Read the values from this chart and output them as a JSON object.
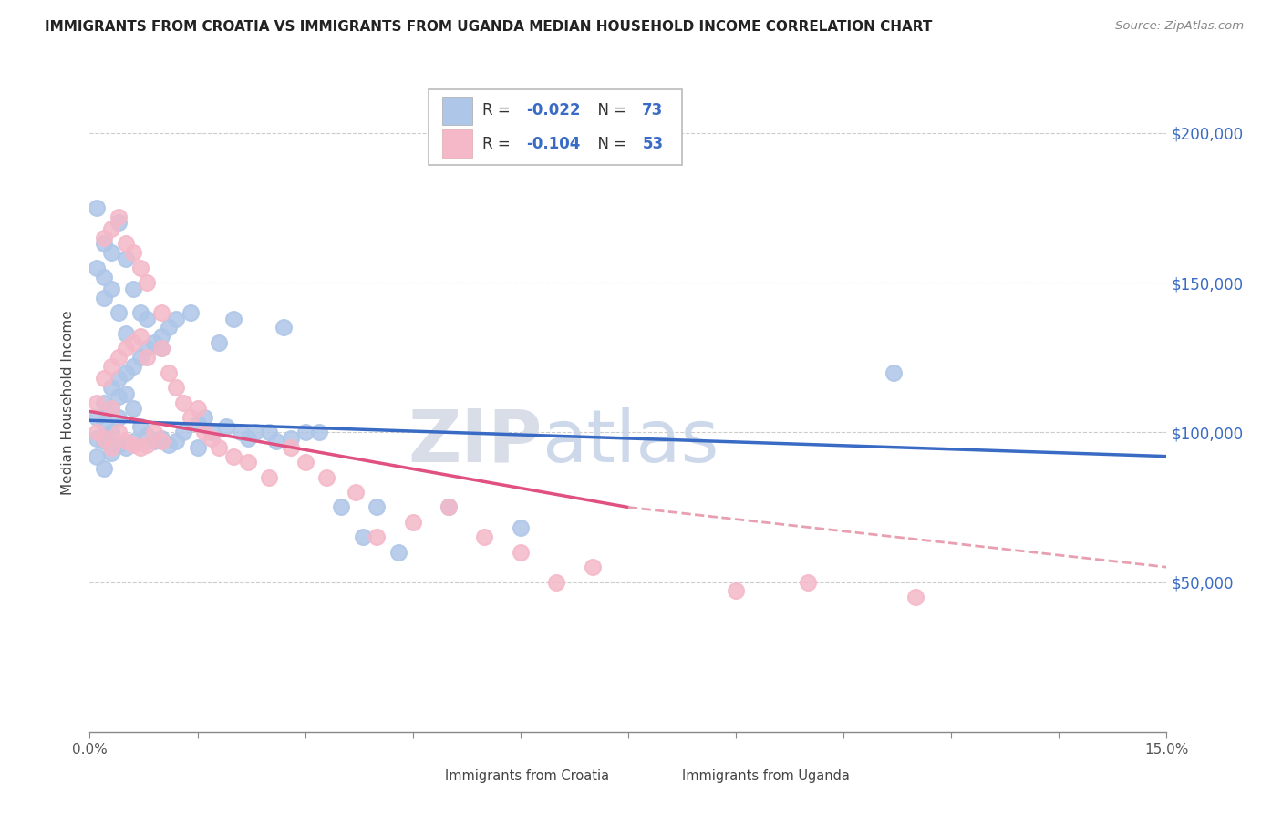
{
  "title": "IMMIGRANTS FROM CROATIA VS IMMIGRANTS FROM UGANDA MEDIAN HOUSEHOLD INCOME CORRELATION CHART",
  "source": "Source: ZipAtlas.com",
  "ylabel": "Median Household Income",
  "xlim": [
    0.0,
    0.15
  ],
  "ylim": [
    0,
    220000
  ],
  "yticks": [
    50000,
    100000,
    150000,
    200000
  ],
  "ytick_labels": [
    "$50,000",
    "$100,000",
    "$150,000",
    "$200,000"
  ],
  "xticks": [
    0.0,
    0.05,
    0.1,
    0.15
  ],
  "xtick_labels": [
    "0.0%",
    "",
    "",
    "15.0%"
  ],
  "color_croatia": "#aec6e8",
  "color_uganda": "#f4b8c8",
  "trendline_croatia_color": "#3a6bc4",
  "trendline_uganda_color": "#e05080",
  "trendline_uganda_dash_color": "#e8a0b0",
  "watermark_zip": "ZIP",
  "watermark_atlas": "atlas",
  "legend1_R": "-0.022",
  "legend1_N": "73",
  "legend2_R": "-0.104",
  "legend2_N": "53",
  "bottom_label1": "Immigrants from Croatia",
  "bottom_label2": "Immigrants from Uganda",
  "croatia_x": [
    0.001,
    0.001,
    0.001,
    0.002,
    0.002,
    0.002,
    0.002,
    0.003,
    0.003,
    0.003,
    0.003,
    0.004,
    0.004,
    0.004,
    0.004,
    0.005,
    0.005,
    0.005,
    0.006,
    0.006,
    0.006,
    0.007,
    0.007,
    0.008,
    0.008,
    0.009,
    0.009,
    0.01,
    0.01,
    0.011,
    0.011,
    0.012,
    0.012,
    0.013,
    0.014,
    0.015,
    0.015,
    0.016,
    0.017,
    0.018,
    0.019,
    0.02,
    0.021,
    0.022,
    0.023,
    0.025,
    0.026,
    0.027,
    0.028,
    0.03,
    0.032,
    0.035,
    0.038,
    0.04,
    0.043,
    0.001,
    0.002,
    0.003,
    0.004,
    0.005,
    0.001,
    0.002,
    0.002,
    0.003,
    0.004,
    0.005,
    0.006,
    0.007,
    0.008,
    0.01,
    0.05,
    0.06,
    0.112
  ],
  "croatia_y": [
    105000,
    98000,
    92000,
    110000,
    103000,
    97000,
    88000,
    115000,
    108000,
    100000,
    93000,
    118000,
    112000,
    105000,
    96000,
    120000,
    113000,
    95000,
    122000,
    108000,
    97000,
    125000,
    102000,
    128000,
    99000,
    130000,
    97000,
    132000,
    98000,
    135000,
    96000,
    138000,
    97000,
    100000,
    140000,
    103000,
    95000,
    105000,
    100000,
    130000,
    102000,
    138000,
    100000,
    98000,
    100000,
    100000,
    97000,
    135000,
    98000,
    100000,
    100000,
    75000,
    65000,
    75000,
    60000,
    155000,
    145000,
    148000,
    140000,
    133000,
    175000,
    163000,
    152000,
    160000,
    170000,
    158000,
    148000,
    140000,
    138000,
    128000,
    75000,
    68000,
    120000
  ],
  "uganda_x": [
    0.001,
    0.001,
    0.002,
    0.002,
    0.003,
    0.003,
    0.003,
    0.004,
    0.004,
    0.005,
    0.005,
    0.006,
    0.006,
    0.007,
    0.007,
    0.008,
    0.008,
    0.009,
    0.01,
    0.01,
    0.011,
    0.012,
    0.013,
    0.014,
    0.015,
    0.016,
    0.017,
    0.018,
    0.02,
    0.022,
    0.025,
    0.028,
    0.03,
    0.033,
    0.037,
    0.04,
    0.045,
    0.05,
    0.055,
    0.06,
    0.002,
    0.003,
    0.004,
    0.005,
    0.006,
    0.007,
    0.008,
    0.01,
    0.065,
    0.07,
    0.09,
    0.1,
    0.115
  ],
  "uganda_y": [
    110000,
    100000,
    118000,
    98000,
    122000,
    108000,
    95000,
    125000,
    100000,
    128000,
    97000,
    130000,
    96000,
    132000,
    95000,
    125000,
    96000,
    100000,
    128000,
    97000,
    120000,
    115000,
    110000,
    105000,
    108000,
    100000,
    98000,
    95000,
    92000,
    90000,
    85000,
    95000,
    90000,
    85000,
    80000,
    65000,
    70000,
    75000,
    65000,
    60000,
    165000,
    168000,
    172000,
    163000,
    160000,
    155000,
    150000,
    140000,
    50000,
    55000,
    47000,
    50000,
    45000
  ]
}
